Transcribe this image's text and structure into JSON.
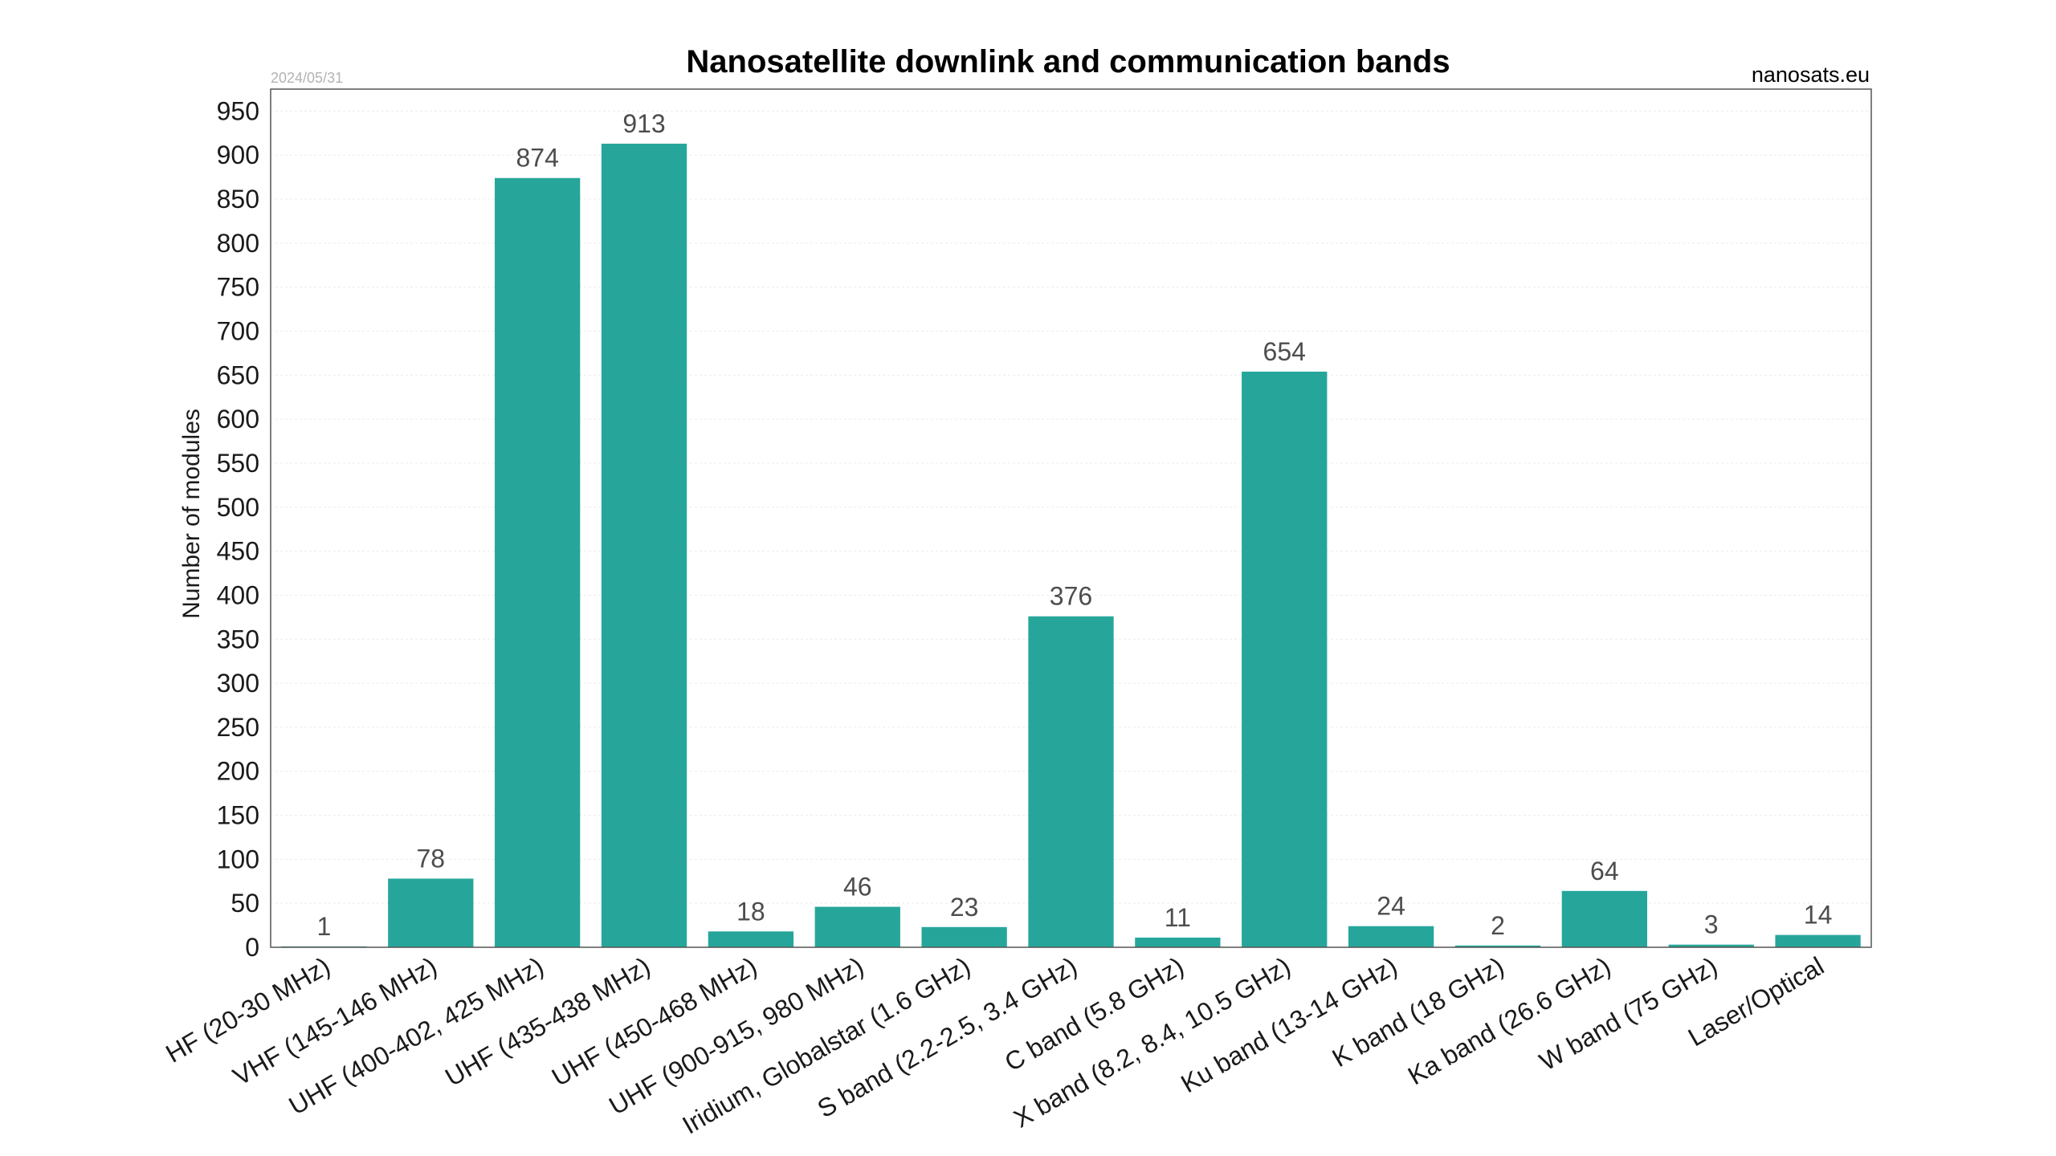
{
  "chart_data": {
    "type": "bar",
    "title": "Nanosatellite downlink and communication bands",
    "date": "2024/05/31",
    "source": "nanosats.eu",
    "xlabel": "",
    "ylabel": "Number of modules",
    "ylim": [
      0,
      975
    ],
    "yticks": [
      0,
      50,
      100,
      150,
      200,
      250,
      300,
      350,
      400,
      450,
      500,
      550,
      600,
      650,
      700,
      750,
      800,
      850,
      900,
      950
    ],
    "grid": true,
    "bar_color": "#26a69a",
    "categories": [
      "HF (20-30 MHz)",
      "VHF (145-146 MHz)",
      "UHF (400-402, 425 MHz)",
      "UHF (435-438 MHz)",
      "UHF (450-468 MHz)",
      "UHF (900-915, 980 MHz)",
      "Iridium, Globalstar (1.6 GHz)",
      "S band (2.2-2.5, 3.4 GHz)",
      "C band (5.8 GHz)",
      "X band (8.2, 8.4, 10.5 GHz)",
      "Ku band (13-14 GHz)",
      "K band (18 GHz)",
      "Ka band (26.6 GHz)",
      "W band (75 GHz)",
      "Laser/Optical"
    ],
    "values": [
      1,
      78,
      874,
      913,
      18,
      46,
      23,
      376,
      11,
      654,
      24,
      2,
      64,
      3,
      14
    ]
  }
}
